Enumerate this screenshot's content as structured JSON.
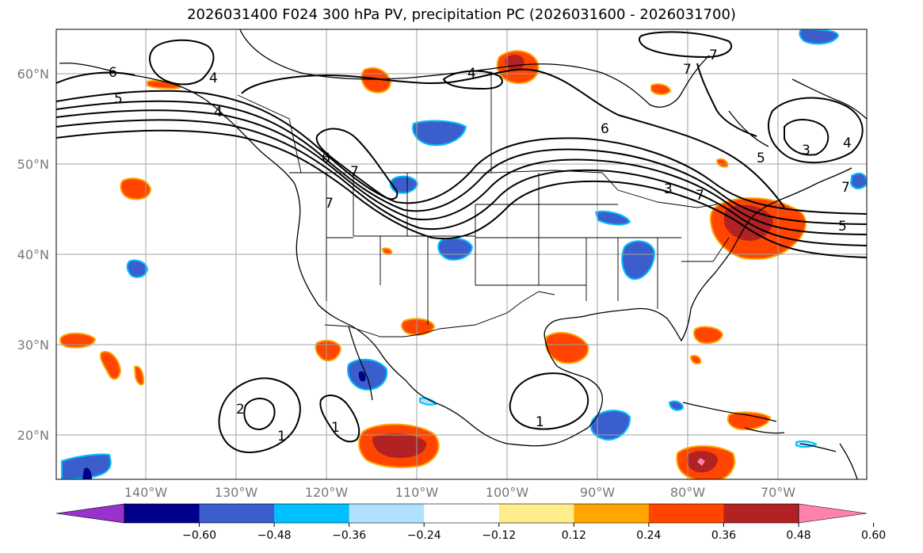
{
  "title": "2026031400 F024 300 hPa PV, precipitation PC (2026031600 - 2026031700)",
  "latitude_labels": [
    "60°N",
    "50°N",
    "40°N",
    "30°N",
    "20°N"
  ],
  "longitude_labels": [
    "140°W",
    "130°W",
    "120°W",
    "110°W",
    "100°W",
    "90°W",
    "80°W",
    "70°W"
  ],
  "colorbar": {
    "ticks": [
      "−0.60",
      "−0.48",
      "−0.36",
      "−0.24",
      "−0.12",
      "0.12",
      "0.24",
      "0.36",
      "0.48",
      "0.60"
    ],
    "colors": [
      "#9932CC",
      "#00008B",
      "#3A5FCD",
      "#00BFFF",
      "#B0E2FF",
      "#FFFFFF",
      "#FFEC8B",
      "#FFA500",
      "#FF4500",
      "#B22222",
      "#FF82AB"
    ]
  },
  "contour_labels": [
    "6",
    "4",
    "5",
    "4",
    "6",
    "6",
    "7",
    "4",
    "7",
    "7",
    "3",
    "4",
    "5",
    "5",
    "3",
    "7",
    "7",
    "2",
    "1",
    "1",
    "1",
    "7"
  ],
  "colors": {
    "land_line": "#000000",
    "grid": "#a0a0a0",
    "background": "#ffffff"
  }
}
